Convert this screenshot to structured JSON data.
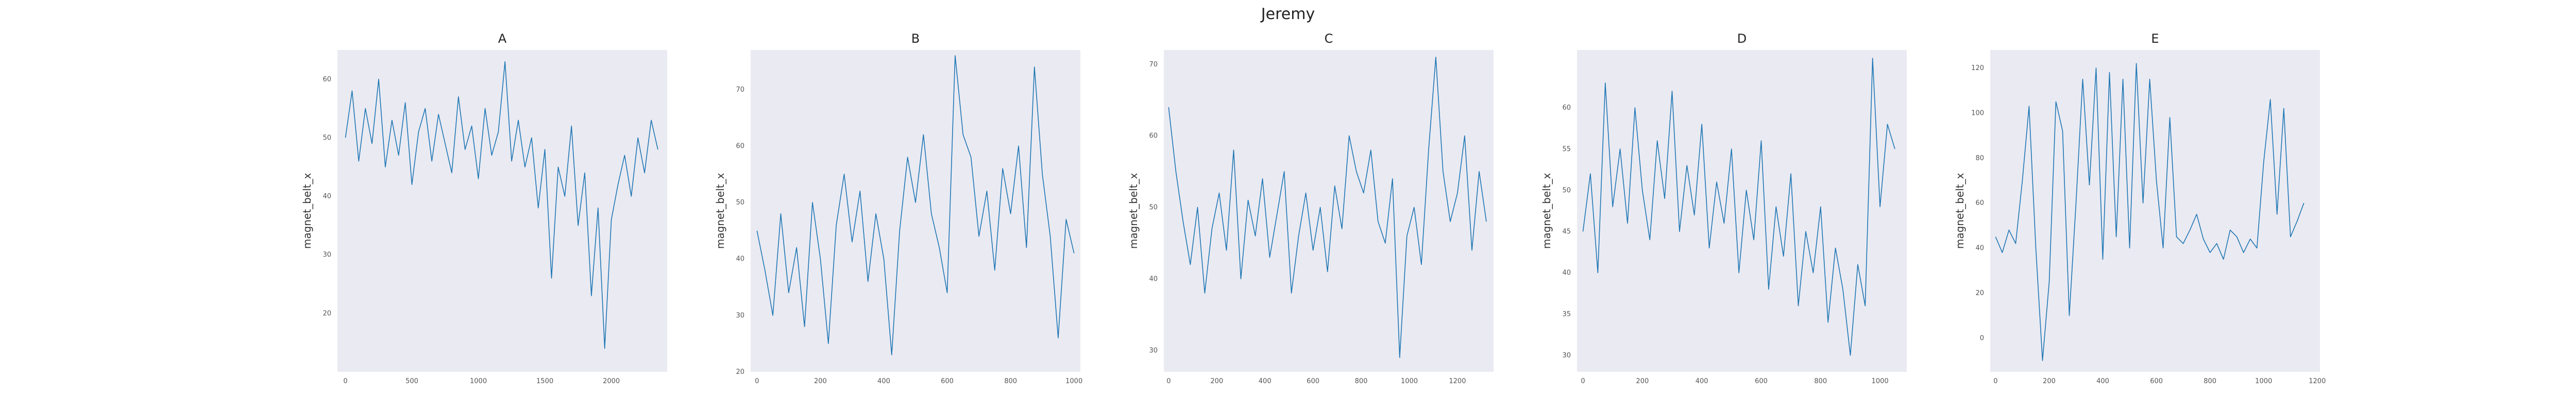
{
  "figure": {
    "suptitle": "Jeremy"
  },
  "style": {
    "line_color": "#1f77b4",
    "plot_background": "#eaeaf2",
    "grid": false
  },
  "chart_data": [
    {
      "type": "line",
      "title": "A",
      "xlabel": "",
      "ylabel": "magnet_belt_x",
      "xlim": [
        -60,
        2420
      ],
      "ylim": [
        10,
        65
      ],
      "xticks": [
        0,
        500,
        1000,
        1500,
        2000
      ],
      "yticks": [
        20,
        30,
        40,
        50,
        60
      ],
      "x": [
        0,
        50,
        100,
        150,
        200,
        250,
        300,
        350,
        400,
        450,
        500,
        550,
        600,
        650,
        700,
        750,
        800,
        850,
        900,
        950,
        1000,
        1050,
        1100,
        1150,
        1200,
        1250,
        1300,
        1350,
        1400,
        1450,
        1500,
        1550,
        1600,
        1650,
        1700,
        1750,
        1800,
        1850,
        1900,
        1950,
        2000,
        2050,
        2100,
        2150,
        2200,
        2250,
        2300,
        2350
      ],
      "y": [
        50,
        58,
        46,
        55,
        49,
        60,
        45,
        53,
        47,
        56,
        42,
        51,
        55,
        46,
        54,
        49,
        44,
        57,
        48,
        52,
        43,
        55,
        47,
        51,
        63,
        46,
        53,
        45,
        50,
        38,
        48,
        26,
        45,
        40,
        52,
        35,
        44,
        23,
        38,
        14,
        36,
        42,
        47,
        40,
        50,
        44,
        53,
        48
      ]
    },
    {
      "type": "line",
      "title": "B",
      "xlabel": "",
      "ylabel": "magnet_belt_x",
      "xlim": [
        -20,
        1020
      ],
      "ylim": [
        20,
        77
      ],
      "xticks": [
        0,
        200,
        400,
        600,
        800,
        1000
      ],
      "yticks": [
        20,
        30,
        40,
        50,
        60,
        70
      ],
      "x": [
        0,
        25,
        50,
        75,
        100,
        125,
        150,
        175,
        200,
        225,
        250,
        275,
        300,
        325,
        350,
        375,
        400,
        425,
        450,
        475,
        500,
        525,
        550,
        575,
        600,
        625,
        650,
        675,
        700,
        725,
        750,
        775,
        800,
        825,
        850,
        875,
        900,
        925,
        950,
        975,
        1000
      ],
      "y": [
        45,
        38,
        30,
        48,
        34,
        42,
        28,
        50,
        40,
        25,
        46,
        55,
        43,
        52,
        36,
        48,
        40,
        23,
        45,
        58,
        50,
        62,
        48,
        42,
        34,
        76,
        62,
        58,
        44,
        52,
        38,
        56,
        48,
        60,
        42,
        74,
        55,
        44,
        26,
        47,
        41
      ]
    },
    {
      "type": "line",
      "title": "C",
      "xlabel": "",
      "ylabel": "magnet_belt_x",
      "xlim": [
        -20,
        1350
      ],
      "ylim": [
        27,
        72
      ],
      "xticks": [
        0,
        200,
        400,
        600,
        800,
        1000,
        1200
      ],
      "yticks": [
        30,
        40,
        50,
        60,
        70
      ],
      "x": [
        0,
        30,
        60,
        90,
        120,
        150,
        180,
        210,
        240,
        270,
        300,
        330,
        360,
        390,
        420,
        450,
        480,
        510,
        540,
        570,
        600,
        630,
        660,
        690,
        720,
        750,
        780,
        810,
        840,
        870,
        900,
        930,
        960,
        990,
        1020,
        1050,
        1080,
        1110,
        1140,
        1170,
        1200,
        1230,
        1260,
        1290,
        1320
      ],
      "y": [
        64,
        55,
        48,
        42,
        50,
        38,
        47,
        52,
        44,
        58,
        40,
        51,
        46,
        54,
        43,
        49,
        55,
        38,
        46,
        52,
        44,
        50,
        41,
        53,
        47,
        60,
        55,
        52,
        58,
        48,
        45,
        54,
        29,
        46,
        50,
        42,
        58,
        71,
        55,
        48,
        52,
        60,
        44,
        55,
        48
      ]
    },
    {
      "type": "line",
      "title": "D",
      "xlabel": "",
      "ylabel": "magnet_belt_x",
      "xlim": [
        -20,
        1090
      ],
      "ylim": [
        28,
        67
      ],
      "xticks": [
        0,
        200,
        400,
        600,
        800,
        1000
      ],
      "yticks": [
        30,
        35,
        40,
        45,
        50,
        55,
        60
      ],
      "x": [
        0,
        25,
        50,
        75,
        100,
        125,
        150,
        175,
        200,
        225,
        250,
        275,
        300,
        325,
        350,
        375,
        400,
        425,
        450,
        475,
        500,
        525,
        550,
        575,
        600,
        625,
        650,
        675,
        700,
        725,
        750,
        775,
        800,
        825,
        850,
        875,
        900,
        925,
        950,
        975,
        1000,
        1025,
        1050
      ],
      "y": [
        45,
        52,
        40,
        63,
        48,
        55,
        46,
        60,
        50,
        44,
        56,
        49,
        62,
        45,
        53,
        47,
        58,
        43,
        51,
        46,
        55,
        40,
        50,
        44,
        56,
        38,
        48,
        42,
        52,
        36,
        45,
        40,
        48,
        34,
        43,
        38,
        30,
        41,
        36,
        66,
        48,
        58,
        55
      ]
    },
    {
      "type": "line",
      "title": "E",
      "xlabel": "",
      "ylabel": "magnet_belt_x",
      "xlim": [
        -20,
        1210
      ],
      "ylim": [
        -15,
        128
      ],
      "xticks": [
        0,
        200,
        400,
        600,
        800,
        1000,
        1200
      ],
      "yticks": [
        0,
        20,
        40,
        60,
        80,
        100,
        120
      ],
      "x": [
        0,
        25,
        50,
        75,
        100,
        125,
        150,
        175,
        200,
        225,
        250,
        275,
        300,
        325,
        350,
        375,
        400,
        425,
        450,
        475,
        500,
        525,
        550,
        575,
        600,
        625,
        650,
        675,
        700,
        725,
        750,
        775,
        800,
        825,
        850,
        875,
        900,
        925,
        950,
        975,
        1000,
        1025,
        1050,
        1075,
        1100,
        1125,
        1150
      ],
      "y": [
        45,
        38,
        48,
        42,
        70,
        103,
        40,
        -10,
        25,
        105,
        92,
        10,
        60,
        115,
        68,
        120,
        35,
        118,
        45,
        115,
        40,
        122,
        60,
        115,
        70,
        40,
        98,
        45,
        42,
        48,
        55,
        44,
        38,
        42,
        35,
        48,
        45,
        38,
        44,
        40,
        78,
        106,
        55,
        102,
        45,
        52,
        60
      ]
    }
  ]
}
